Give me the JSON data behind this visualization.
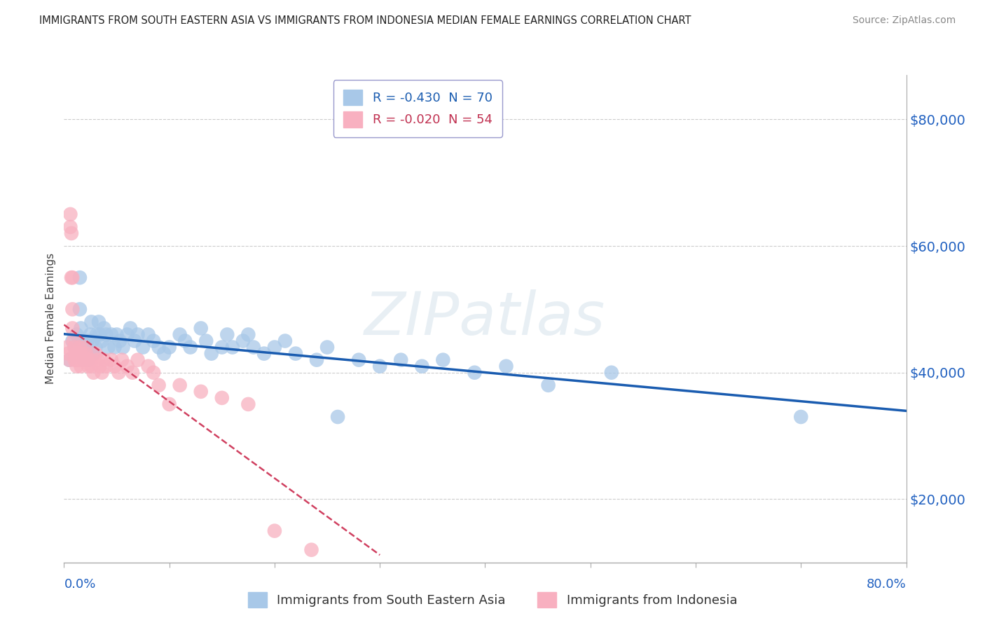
{
  "title": "IMMIGRANTS FROM SOUTH EASTERN ASIA VS IMMIGRANTS FROM INDONESIA MEDIAN FEMALE EARNINGS CORRELATION CHART",
  "source": "Source: ZipAtlas.com",
  "ylabel": "Median Female Earnings",
  "series1_label": "Immigrants from South Eastern Asia",
  "series2_label": "Immigrants from Indonesia",
  "legend1_label": "R = -0.430  N = 70",
  "legend2_label": "R = -0.020  N = 54",
  "series1_color": "#a8c8e8",
  "series2_color": "#f8b0c0",
  "series1_line_color": "#1a5cb0",
  "series2_line_color": "#d04060",
  "yticks": [
    20000,
    40000,
    60000,
    80000
  ],
  "ytick_labels": [
    "$20,000",
    "$40,000",
    "$60,000",
    "$80,000"
  ],
  "xlim": [
    0.0,
    0.8
  ],
  "ylim": [
    10000,
    87000
  ],
  "watermark": "ZIPatlas",
  "series1_x": [
    0.005,
    0.008,
    0.01,
    0.012,
    0.015,
    0.015,
    0.016,
    0.017,
    0.018,
    0.019,
    0.02,
    0.021,
    0.022,
    0.023,
    0.025,
    0.026,
    0.027,
    0.028,
    0.03,
    0.031,
    0.033,
    0.034,
    0.036,
    0.038,
    0.04,
    0.042,
    0.045,
    0.048,
    0.05,
    0.053,
    0.056,
    0.06,
    0.063,
    0.067,
    0.07,
    0.075,
    0.08,
    0.085,
    0.09,
    0.095,
    0.1,
    0.11,
    0.115,
    0.12,
    0.13,
    0.135,
    0.14,
    0.15,
    0.155,
    0.16,
    0.17,
    0.175,
    0.18,
    0.19,
    0.2,
    0.21,
    0.22,
    0.24,
    0.25,
    0.26,
    0.28,
    0.3,
    0.32,
    0.34,
    0.36,
    0.39,
    0.42,
    0.46,
    0.52,
    0.7
  ],
  "series1_y": [
    42000,
    45000,
    44000,
    46000,
    55000,
    50000,
    47000,
    45000,
    43000,
    42000,
    43000,
    44000,
    45000,
    42000,
    46000,
    48000,
    45000,
    43000,
    44000,
    46000,
    48000,
    46000,
    45000,
    47000,
    46000,
    44000,
    46000,
    44000,
    46000,
    45000,
    44000,
    46000,
    47000,
    45000,
    46000,
    44000,
    46000,
    45000,
    44000,
    43000,
    44000,
    46000,
    45000,
    44000,
    47000,
    45000,
    43000,
    44000,
    46000,
    44000,
    45000,
    46000,
    44000,
    43000,
    44000,
    45000,
    43000,
    42000,
    44000,
    33000,
    42000,
    41000,
    42000,
    41000,
    42000,
    40000,
    41000,
    38000,
    40000,
    33000
  ],
  "series2_x": [
    0.003,
    0.004,
    0.005,
    0.006,
    0.006,
    0.007,
    0.007,
    0.008,
    0.008,
    0.008,
    0.009,
    0.01,
    0.01,
    0.011,
    0.012,
    0.012,
    0.013,
    0.014,
    0.015,
    0.015,
    0.016,
    0.016,
    0.017,
    0.018,
    0.02,
    0.021,
    0.022,
    0.023,
    0.025,
    0.026,
    0.028,
    0.03,
    0.032,
    0.034,
    0.036,
    0.038,
    0.04,
    0.045,
    0.048,
    0.052,
    0.055,
    0.06,
    0.065,
    0.07,
    0.08,
    0.085,
    0.09,
    0.1,
    0.11,
    0.13,
    0.15,
    0.175,
    0.2,
    0.235
  ],
  "series2_y": [
    44000,
    43000,
    42000,
    65000,
    63000,
    62000,
    55000,
    55000,
    50000,
    47000,
    45000,
    44000,
    42000,
    43000,
    42000,
    41000,
    43000,
    42000,
    44000,
    43000,
    42000,
    41000,
    43000,
    42000,
    44000,
    43000,
    42000,
    41000,
    42000,
    41000,
    40000,
    43000,
    42000,
    41000,
    40000,
    42000,
    41000,
    42000,
    41000,
    40000,
    42000,
    41000,
    40000,
    42000,
    41000,
    40000,
    38000,
    35000,
    38000,
    37000,
    36000,
    35000,
    15000,
    12000
  ]
}
